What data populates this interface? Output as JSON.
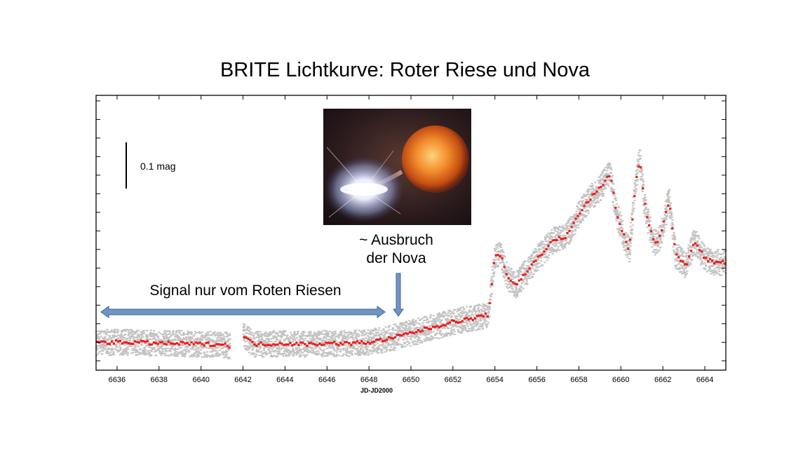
{
  "slide": {
    "title": "BRITE Lichtkurve: Roter Riese und Nova"
  },
  "annotations": {
    "signal": "Signal nur vom Roten Riesen",
    "outburst_line1": "~ Ausbruch",
    "outburst_line2": "der Nova",
    "scale_bar": "0.1 mag"
  },
  "colors": {
    "raw_points": "#c3c3c3",
    "binned_points": "#ee1c1c",
    "arrow_fill": "#6f95c4",
    "arrow_stroke": "#3f668f"
  },
  "chart_data": {
    "type": "scatter",
    "title": "",
    "xlabel": "JD-JD2000",
    "ylabel": "",
    "xlim": [
      6635,
      6665
    ],
    "ylim": [
      0,
      0.74
    ],
    "y_unit": "relative brightness (mag, scale bar 0.1 mag)",
    "x_ticks": [
      6636,
      6638,
      6640,
      6642,
      6644,
      6646,
      6648,
      6650,
      6652,
      6654,
      6656,
      6658,
      6660,
      6662,
      6664
    ],
    "gap": [
      6641.4,
      6642.0
    ],
    "series": [
      {
        "style": "binned (red)",
        "x": [
          6635,
          6636,
          6637,
          6638,
          6639,
          6640,
          6641,
          6641.4,
          6642.0,
          6642.5,
          6643,
          6644,
          6645,
          6646,
          6647,
          6648,
          6648.5,
          6649,
          6650,
          6651,
          6652,
          6653,
          6653.7,
          6654.0,
          6654.3,
          6654.6,
          6655.0,
          6655.3,
          6656,
          6656.8,
          6657.4,
          6658,
          6658.5,
          6659.0,
          6659.5,
          6659.8,
          6660.1,
          6660.4,
          6660.7,
          6660.9,
          6661.1,
          6661.3,
          6661.6,
          6661.9,
          6662.3,
          6662.6,
          6662.8,
          6663.1,
          6663.5,
          6664,
          6664.5,
          6665
        ],
        "y": [
          0.075,
          0.075,
          0.075,
          0.072,
          0.072,
          0.07,
          0.07,
          0.065,
          0.095,
          0.07,
          0.07,
          0.072,
          0.07,
          0.072,
          0.072,
          0.075,
          0.08,
          0.085,
          0.1,
          0.115,
          0.13,
          0.14,
          0.15,
          0.31,
          0.31,
          0.25,
          0.23,
          0.25,
          0.3,
          0.35,
          0.36,
          0.42,
          0.46,
          0.49,
          0.53,
          0.42,
          0.37,
          0.32,
          0.5,
          0.57,
          0.46,
          0.4,
          0.34,
          0.36,
          0.46,
          0.31,
          0.3,
          0.28,
          0.35,
          0.3,
          0.29,
          0.29
        ]
      }
    ]
  }
}
